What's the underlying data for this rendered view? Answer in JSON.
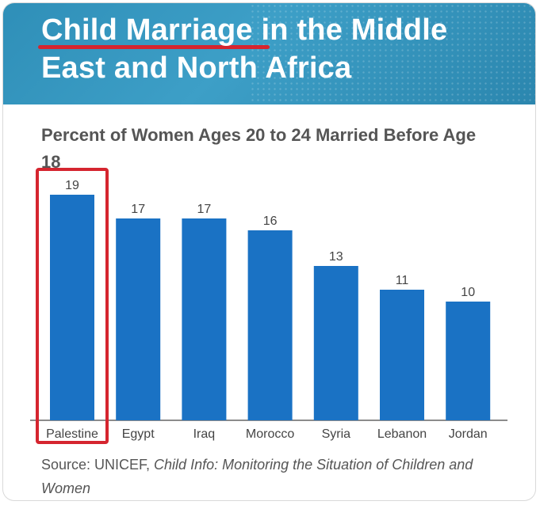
{
  "header": {
    "title_line1": "Child Marriage in the Middle",
    "title_line2": "East and North Africa"
  },
  "chart_data": {
    "type": "bar",
    "title": "Percent of Women Ages 20 to 24 Married Before Age 18",
    "categories": [
      "Palestine",
      "Egypt",
      "Iraq",
      "Morocco",
      "Syria",
      "Lebanon",
      "Jordan"
    ],
    "values": [
      19,
      17,
      17,
      16,
      13,
      11,
      10
    ],
    "highlighted_category": "Palestine",
    "xlabel": "",
    "ylabel": "",
    "ylim": [
      0,
      20
    ],
    "grid": false,
    "colors": {
      "bar": "#1a72c4",
      "highlight_box": "#d5252f",
      "axis": "#666666",
      "label": "#444444"
    }
  },
  "source": {
    "prefix": "Source: UNICEF, ",
    "italic_text": "Child Info: Monitoring the Situation of Children and Women"
  }
}
